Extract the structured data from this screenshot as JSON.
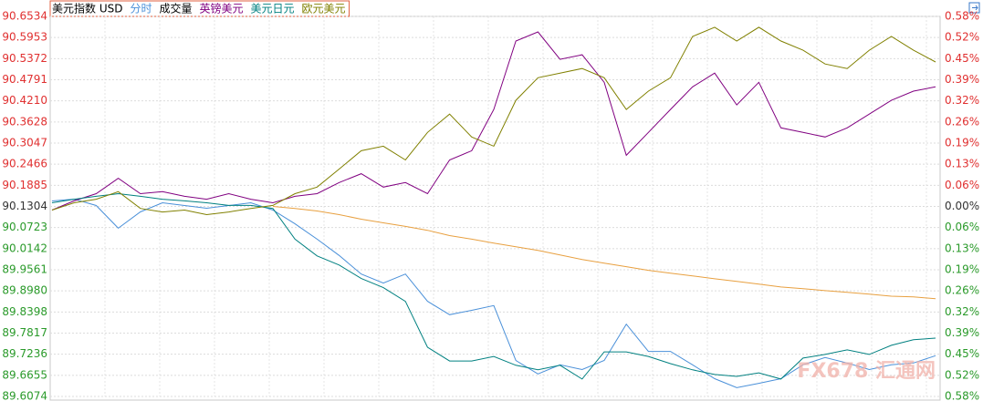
{
  "chart_data": {
    "type": "line",
    "title": "美元指数 USD",
    "watermark": "FX678 汇通网",
    "ylim": [
      89.6074,
      90.6534
    ],
    "yticks": [
      90.6534,
      90.5953,
      90.5372,
      90.4791,
      {
        "value": 90.421,
        "label": "90.4210"
      },
      90.3628,
      90.3047,
      90.2466,
      90.1885,
      90.1304,
      90.0723,
      90.0142,
      89.9561,
      {
        "value": 89.898,
        "label": "89.8980"
      },
      89.8398,
      89.7817,
      89.7236,
      89.6655,
      89.6074
    ],
    "y2lim": [
      -0.5802,
      0.5802
    ],
    "y2ticks": [
      {
        "value": 0.5802,
        "label": "0.58%"
      },
      {
        "value": 0.5158,
        "label": "0.52%"
      },
      {
        "value": 0.4513,
        "label": "0.45%"
      },
      {
        "value": 0.3868,
        "label": "0.39%"
      },
      {
        "value": 0.3224,
        "label": "0.32%"
      },
      {
        "value": 0.2579,
        "label": "0.26%"
      },
      {
        "value": 0.1934,
        "label": "0.19%"
      },
      {
        "value": 0.129,
        "label": "0.13%"
      },
      {
        "value": 0.0645,
        "label": "0.06%"
      },
      {
        "value": 0,
        "label": "0.00%"
      },
      {
        "value": -0.0645,
        "label": "0.06%"
      },
      {
        "value": -0.129,
        "label": "0.13%"
      },
      {
        "value": -0.1934,
        "label": "0.19%"
      },
      {
        "value": -0.2579,
        "label": "0.26%"
      },
      {
        "value": -0.3224,
        "label": "0.32%"
      },
      {
        "value": -0.3868,
        "label": "0.39%"
      },
      {
        "value": -0.4513,
        "label": "0.45%"
      },
      {
        "value": -0.5158,
        "label": "0.52%"
      },
      {
        "value": -0.5802,
        "label": "0.58%"
      }
    ],
    "baseline": 90.1304,
    "up_color": "#e03030",
    "down_color": "#2a9a2a",
    "base_color": "#333333",
    "grid": true,
    "series": [
      {
        "name": "分时",
        "color": "#4a90d9",
        "label_color": "#4a90d9",
        "axis": "y",
        "values": [
          90.1454,
          90.1504,
          90.1329,
          90.0704,
          90.1154,
          90.1404,
          90.1329,
          90.1254,
          90.1329,
          90.1404,
          90.1204,
          90.0824,
          90.0404,
          89.9954,
          89.9444,
          89.9194,
          89.9444,
          89.8694,
          89.8324,
          89.8444,
          89.8574,
          89.7064,
          89.6694,
          89.6944,
          89.6814,
          89.7064,
          89.8064,
          89.7314,
          89.7314,
          89.6944,
          89.6564,
          89.6314,
          89.6434,
          89.6564,
          89.6944,
          89.7144,
          89.6994,
          89.6814,
          89.6944,
          89.6994,
          89.7194
        ]
      },
      {
        "name": "成交量",
        "color": "#e8a040",
        "label_color": "#000000",
        "axis": "y2",
        "values": [
          null,
          null,
          null,
          null,
          null,
          null,
          null,
          null,
          null,
          null,
          0,
          -0.006,
          -0.014,
          -0.025,
          -0.039,
          -0.05,
          -0.061,
          -0.073,
          -0.089,
          -0.1,
          -0.112,
          -0.123,
          -0.134,
          -0.148,
          -0.162,
          -0.173,
          -0.184,
          -0.195,
          -0.204,
          -0.212,
          -0.221,
          -0.229,
          -0.237,
          -0.246,
          -0.251,
          -0.257,
          -0.262,
          -0.268,
          -0.274,
          -0.276,
          -0.282
        ]
      },
      {
        "name": "英镑美元",
        "color": "#800080",
        "label_color": "#800080",
        "axis": "y2",
        "values": [
          -0.011,
          0.017,
          0.039,
          0.086,
          0.039,
          0.045,
          0.031,
          0.022,
          0.039,
          0.022,
          0.011,
          0.031,
          0.039,
          0.073,
          0.1,
          0.059,
          0.073,
          0.039,
          0.142,
          0.17,
          0.296,
          0.505,
          0.533,
          0.449,
          0.463,
          0.379,
          0.156,
          0.226,
          0.296,
          0.365,
          0.407,
          0.31,
          0.379,
          0.24,
          0.226,
          0.212,
          0.24,
          0.282,
          0.324,
          0.352,
          0.365
        ]
      },
      {
        "name": "美元日元",
        "color": "#008080",
        "label_color": "#008080",
        "axis": "y2",
        "values": [
          0.011,
          0.022,
          0.031,
          0.039,
          0.031,
          0.022,
          0.017,
          0.011,
          0.003,
          0.003,
          -0.006,
          -0.1,
          -0.151,
          -0.179,
          -0.22,
          -0.248,
          -0.29,
          -0.43,
          -0.472,
          -0.472,
          -0.458,
          -0.485,
          -0.499,
          -0.485,
          -0.527,
          -0.444,
          -0.444,
          -0.458,
          -0.48,
          -0.499,
          -0.513,
          -0.519,
          -0.508,
          -0.527,
          -0.463,
          -0.452,
          -0.438,
          -0.452,
          -0.424,
          -0.407,
          -0.402
        ]
      },
      {
        "name": "欧元美元",
        "color": "#808000",
        "label_color": "#808000",
        "axis": "y2",
        "values": [
          -0.011,
          0.011,
          0.022,
          0.045,
          -0.006,
          -0.017,
          -0.011,
          -0.025,
          -0.017,
          -0.006,
          0.003,
          0.039,
          0.059,
          0.114,
          0.17,
          0.184,
          0.142,
          0.226,
          0.282,
          0.212,
          0.184,
          0.324,
          0.393,
          0.407,
          0.421,
          0.393,
          0.296,
          0.352,
          0.393,
          0.519,
          0.547,
          0.505,
          0.547,
          0.505,
          0.477,
          0.435,
          0.421,
          0.477,
          0.519,
          0.477,
          0.441
        ]
      }
    ]
  }
}
